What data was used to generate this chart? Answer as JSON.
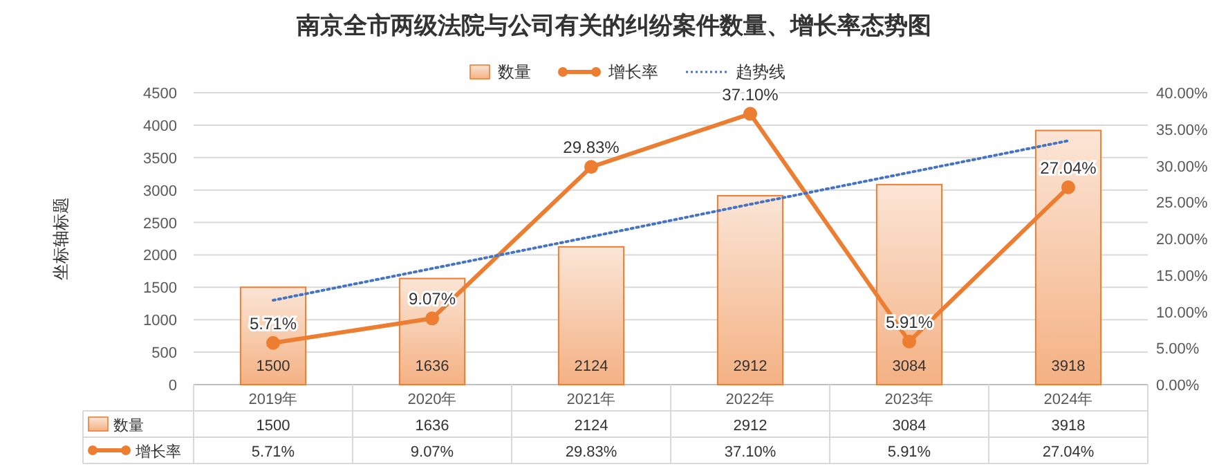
{
  "chart_data": {
    "type": "bar",
    "title": "南京全市两级法院与公司有关的纠纷案件数量、增长率态势图",
    "ylabel": "坐标轴标题",
    "categories": [
      "2019年",
      "2020年",
      "2021年",
      "2022年",
      "2023年",
      "2024年"
    ],
    "series": [
      {
        "name": "数量",
        "color": "#ed7d31",
        "values": [
          1500,
          1636,
          2124,
          2912,
          3084,
          3918
        ],
        "value_labels": [
          "1500",
          "1636",
          "2124",
          "2912",
          "3084",
          "3918"
        ]
      },
      {
        "name": "增长率",
        "type": "line",
        "axis": "y2",
        "color": "#ed7d31",
        "marker": "circle",
        "values": [
          5.71,
          9.07,
          29.83,
          37.1,
          5.91,
          27.04
        ],
        "value_labels": [
          "5.71%",
          "9.07%",
          "29.83%",
          "37.10%",
          "5.91%",
          "27.04%"
        ]
      },
      {
        "name": "趋势线",
        "type": "line",
        "color": "#4472c4",
        "line_style": "dotted",
        "marker": "none",
        "values": [
          1300,
          1790,
          2280,
          2780,
          3270,
          3760
        ]
      }
    ],
    "ylim": [
      0,
      4500
    ],
    "yticks": [
      0,
      500,
      1000,
      1500,
      2000,
      2500,
      3000,
      3500,
      4000,
      4500
    ],
    "y2lim": [
      0,
      40
    ],
    "y2ticks": [
      {
        "value": 0,
        "label": "0.00%"
      },
      {
        "value": 5,
        "label": "5.00%"
      },
      {
        "value": 10,
        "label": "10.00%"
      },
      {
        "value": 15,
        "label": "15.00%"
      },
      {
        "value": 20,
        "label": "20.00%"
      },
      {
        "value": 25,
        "label": "25.00%"
      },
      {
        "value": 30,
        "label": "30.00%"
      },
      {
        "value": 35,
        "label": "35.00%"
      },
      {
        "value": 40,
        "label": "40.00%"
      }
    ],
    "grid": "y",
    "legend": "top"
  }
}
